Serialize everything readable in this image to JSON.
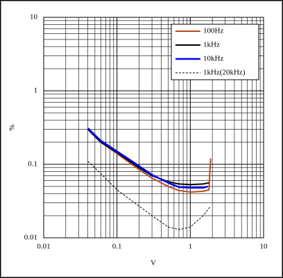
{
  "chart_data": {
    "type": "line",
    "xlabel": "V",
    "ylabel": "%",
    "xscale": "log",
    "yscale": "log",
    "xlim": [
      0.01,
      10
    ],
    "ylim": [
      0.01,
      10
    ],
    "xticks": [
      0.01,
      0.1,
      1,
      10
    ],
    "yticks": [
      0.01,
      0.1,
      1,
      10
    ],
    "xminorticks": [
      0.02,
      0.03,
      0.04,
      0.05,
      0.06,
      0.07,
      0.08,
      0.09,
      0.2,
      0.3,
      0.4,
      0.5,
      0.6,
      0.7,
      0.8,
      0.9,
      2,
      3,
      4,
      5,
      6,
      7,
      8,
      9
    ],
    "yminorticks": [
      0.02,
      0.03,
      0.04,
      0.05,
      0.06,
      0.07,
      0.08,
      0.09,
      0.2,
      0.3,
      0.4,
      0.5,
      0.6,
      0.7,
      0.8,
      0.9,
      2,
      3,
      4,
      5,
      6,
      7,
      8,
      9
    ],
    "grid": true,
    "legend": "top-right",
    "series": [
      {
        "name": "100Hz",
        "color": "#b84a1e",
        "width": 2,
        "dash": "solid",
        "x": [
          0.04,
          0.06,
          0.1,
          0.2,
          0.3,
          0.5,
          0.7,
          1,
          1.5,
          1.8,
          1.85,
          1.9
        ],
        "values": [
          0.3,
          0.2,
          0.14,
          0.085,
          0.065,
          0.05,
          0.044,
          0.042,
          0.043,
          0.045,
          0.08,
          0.12
        ]
      },
      {
        "name": "1kHz",
        "color": "#000000",
        "width": 2,
        "dash": "solid",
        "x": [
          0.04,
          0.06,
          0.1,
          0.2,
          0.3,
          0.5,
          0.7,
          1,
          1.5,
          1.8
        ],
        "values": [
          0.3,
          0.2,
          0.145,
          0.09,
          0.07,
          0.058,
          0.054,
          0.053,
          0.054,
          0.056
        ]
      },
      {
        "name": "10kHz",
        "color": "#0000ff",
        "width": 2.5,
        "dash": "solid",
        "x": [
          0.04,
          0.06,
          0.1,
          0.2,
          0.3,
          0.5,
          0.7,
          1,
          1.5,
          1.75
        ],
        "values": [
          0.31,
          0.21,
          0.15,
          0.095,
          0.072,
          0.056,
          0.049,
          0.048,
          0.048,
          0.05
        ]
      },
      {
        "name": "1kHz(20kHz)",
        "color": "#000000",
        "width": 1,
        "dash": "dashed",
        "x": [
          0.04,
          0.06,
          0.1,
          0.2,
          0.3,
          0.5,
          0.7,
          1,
          1.5,
          1.9
        ],
        "values": [
          0.11,
          0.075,
          0.045,
          0.027,
          0.02,
          0.014,
          0.013,
          0.014,
          0.02,
          0.027
        ]
      }
    ]
  }
}
